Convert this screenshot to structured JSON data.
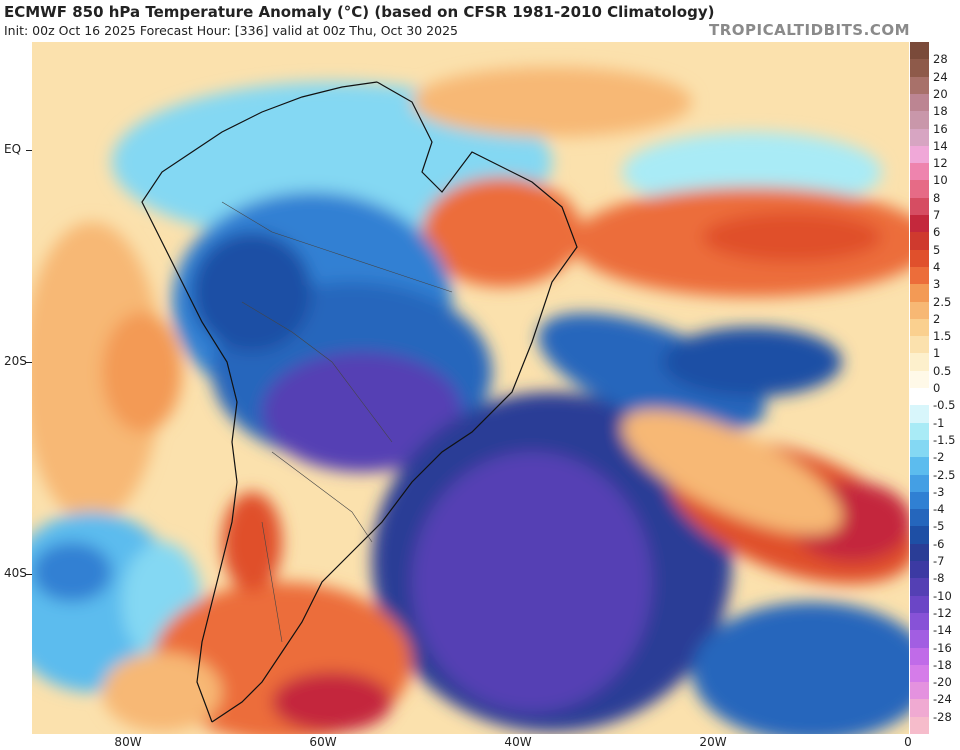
{
  "header": {
    "title": "ECMWF 850 hPa Temperature Anomaly (°C) (based on CFSR 1981-2010 Climatology)",
    "subtitle": "Init: 00z Oct 16 2025   Forecast Hour: [336]   valid at 00z Thu, Oct 30 2025",
    "credit": "TROPICALTIDBITS.COM"
  },
  "axes": {
    "lat_labels": [
      "EQ",
      "20S",
      "40S"
    ],
    "lon_labels": [
      "80W",
      "60W",
      "40W",
      "20W",
      "0"
    ]
  },
  "colorbar": {
    "labels": [
      "28",
      "24",
      "20",
      "18",
      "16",
      "14",
      "12",
      "10",
      "8",
      "7",
      "6",
      "5",
      "4",
      "3",
      "2.5",
      "2",
      "1.5",
      "1",
      "0.5",
      "0",
      "-0.5",
      "-1",
      "-1.5",
      "-2",
      "-2.5",
      "-3",
      "-4",
      "-5",
      "-6",
      "-7",
      "-8",
      "-10",
      "-12",
      "-14",
      "-16",
      "-18",
      "-20",
      "-24",
      "-28"
    ],
    "colors": [
      "#8e5a4a",
      "#a8716a",
      "#bc8592",
      "#c997aa",
      "#d7a5c2",
      "#f0a8d8",
      "#ee84ae",
      "#e66b86",
      "#d64d62",
      "#c4283c",
      "#cf3a2e",
      "#e0502c",
      "#ec6d3a",
      "#f39a55",
      "#f7b874",
      "#fad08f",
      "#fbe1ad",
      "#fdf0cc",
      "#fff9e8",
      "#ffffff",
      "#d8f6fb",
      "#a9ebf6",
      "#84d8f3",
      "#5cbcee",
      "#449fe4",
      "#3080d3",
      "#2566bc",
      "#1e4fa5",
      "#2a3d96",
      "#3c3aa3",
      "#5440b4",
      "#6b46c6",
      "#8752d7",
      "#a25ee2",
      "#c06be8",
      "#d57ce9",
      "#e492df",
      "#f0aad2",
      "#f6bccb"
    ]
  }
}
